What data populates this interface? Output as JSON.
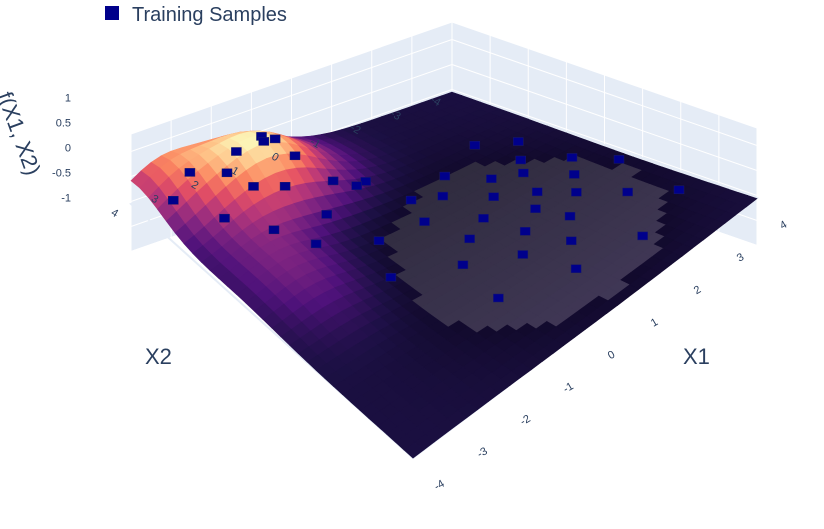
{
  "chart_data": {
    "type": "scatter",
    "subtype": "3d-surface-with-markers",
    "legend": {
      "position": "top-left",
      "entries": [
        {
          "name": "Training Samples",
          "color": "#00008b",
          "symbol": "square"
        }
      ]
    },
    "axes": {
      "x": {
        "title": "X1",
        "ticks": [
          "-4",
          "-3",
          "-2",
          "-1",
          "0",
          "1",
          "2",
          "3",
          "4"
        ],
        "range": [
          -4,
          4
        ]
      },
      "y": {
        "title": "X2",
        "ticks": [
          "-4",
          "-3",
          "-2",
          "-1",
          "0",
          "1",
          "2",
          "3",
          "4"
        ],
        "range": [
          -4,
          4
        ]
      },
      "z": {
        "title": "f(X1, X2)",
        "ticks": [
          "-1",
          "-0.5",
          "0",
          "0.5",
          "1"
        ],
        "range": [
          -1,
          1
        ]
      }
    },
    "grid": true,
    "colorscale": "magma",
    "surface_colors": [
      "#000004",
      "#1c1044",
      "#4f127b",
      "#812581",
      "#b5367a",
      "#e55064",
      "#fb8761",
      "#fec287",
      "#fcfdbf"
    ],
    "series": [
      {
        "name": "Training Samples",
        "color": "#00008b",
        "points": [
          {
            "x": -3.1,
            "y": 1.5,
            "z": 0.95
          },
          {
            "x": -3.3,
            "y": 2.0,
            "z": 0.8
          },
          {
            "x": -3.5,
            "y": 1.2,
            "z": 0.75
          },
          {
            "x": -3.0,
            "y": 2.5,
            "z": 0.7
          },
          {
            "x": -2.8,
            "y": 1.0,
            "z": 0.65
          },
          {
            "x": -2.6,
            "y": 2.2,
            "z": 0.55
          },
          {
            "x": -3.7,
            "y": 2.8,
            "z": 0.4
          },
          {
            "x": -2.4,
            "y": 1.6,
            "z": 0.45
          },
          {
            "x": -2.2,
            "y": 0.6,
            "z": 0.3
          },
          {
            "x": -1.8,
            "y": 2.4,
            "z": 0.2
          },
          {
            "x": -3.9,
            "y": 0.5,
            "z": 0.3
          },
          {
            "x": -2.5,
            "y": 3.0,
            "z": 0.25
          },
          {
            "x": -2.0,
            "y": 0.2,
            "z": 0.15
          },
          {
            "x": -1.7,
            "y": 1.2,
            "z": 0.1
          },
          {
            "x": -3.6,
            "y": 3.3,
            "z": 0.05
          },
          {
            "x": -1.3,
            "y": -0.5,
            "z": -0.1
          },
          {
            "x": -1.5,
            "y": -1.5,
            "z": -0.1
          },
          {
            "x": -1.9,
            "y": -2.6,
            "z": -0.05
          },
          {
            "x": -1.0,
            "y": -1.0,
            "z": -0.1
          },
          {
            "x": -0.8,
            "y": -2.0,
            "z": -0.1
          },
          {
            "x": -1.4,
            "y": -3.2,
            "z": -0.05
          },
          {
            "x": -0.6,
            "y": -0.2,
            "z": -0.1
          },
          {
            "x": -0.9,
            "y": -2.8,
            "z": -0.1
          },
          {
            "x": -0.3,
            "y": -1.6,
            "z": -0.1
          },
          {
            "x": -0.5,
            "y": -2.5,
            "z": -0.1
          },
          {
            "x": -0.2,
            "y": -3.4,
            "z": -0.1
          },
          {
            "x": 0.1,
            "y": -1.0,
            "z": -0.1
          },
          {
            "x": 0.2,
            "y": -2.2,
            "z": -0.1
          },
          {
            "x": 0.4,
            "y": -0.4,
            "z": -0.1
          },
          {
            "x": 0.6,
            "y": -1.8,
            "z": -0.1
          },
          {
            "x": 0.3,
            "y": -3.0,
            "z": -0.1
          },
          {
            "x": 0.8,
            "y": -2.6,
            "z": -0.1
          },
          {
            "x": 1.0,
            "y": -1.2,
            "z": -0.1
          },
          {
            "x": 0.9,
            "y": 0.2,
            "z": -0.1
          },
          {
            "x": 1.3,
            "y": -2.0,
            "z": -0.1
          },
          {
            "x": 1.5,
            "y": -0.7,
            "z": -0.1
          },
          {
            "x": 1.6,
            "y": -3.1,
            "z": -0.1
          },
          {
            "x": 1.9,
            "y": -1.5,
            "z": -0.1
          },
          {
            "x": 2.1,
            "y": 0.4,
            "z": -0.1
          },
          {
            "x": 2.4,
            "y": -3.6,
            "z": -0.1
          },
          {
            "x": 2.6,
            "y": -1.0,
            "z": -0.1
          },
          {
            "x": 2.9,
            "y": -2.3,
            "z": -0.1
          },
          {
            "x": 0.6,
            "y": -3.8,
            "z": -0.1
          },
          {
            "x": -0.6,
            "y": 0.9,
            "z": 0.0
          },
          {
            "x": -1.2,
            "y": 1.9,
            "z": 0.05
          },
          {
            "x": 0.3,
            "y": 1.4,
            "z": -0.05
          },
          {
            "x": -2.2,
            "y": -0.2,
            "z": 0.0
          }
        ]
      }
    ]
  }
}
